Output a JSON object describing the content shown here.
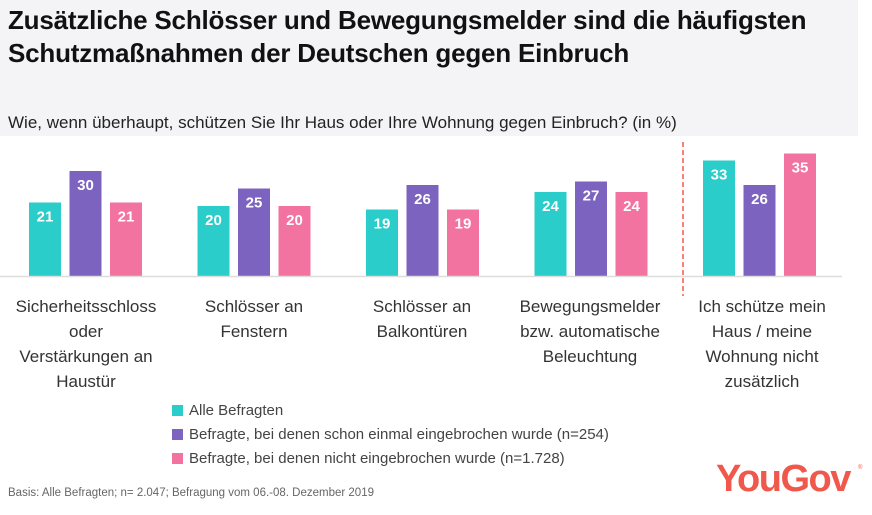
{
  "header": {
    "title": "Zusätzliche Schlösser und Bewegungsmelder sind die häufigsten Schutzmaßnahmen der Deutschen gegen Einbruch",
    "subtitle": "Wie, wenn überhaupt, schützen Sie Ihr Haus oder Ihre Wohnung gegen Einbruch? (in %)"
  },
  "chart_data": {
    "type": "bar",
    "title": "Zusätzliche Schlösser und Bewegungsmelder sind die häufigsten Schutzmaßnahmen der Deutschen gegen Einbruch",
    "subtitle": "Wie, wenn überhaupt, schützen Sie Ihr Haus oder Ihre Wohnung gegen Einbruch? (in %)",
    "xlabel": "",
    "ylabel": "",
    "ylim": [
      0,
      40
    ],
    "grid": false,
    "legend_position": "bottom",
    "categories": [
      "Sicherheitsschloss oder Verstärkungen an Haustür",
      "Schlösser an Fenstern",
      "Schlösser an Balkontüren",
      "Bewegungsmelder bzw. automatische Beleuchtung",
      "Ich schütze mein Haus / meine Wohnung nicht zusätzlich"
    ],
    "category_lines": [
      [
        "Sicherheitsschloss",
        "oder",
        "Verstärkungen an",
        "Haustür"
      ],
      [
        "Schlösser an",
        "Fenstern"
      ],
      [
        "Schlösser an",
        "Balkontüren"
      ],
      [
        "Bewegungsmelder",
        "bzw. automatische",
        "Beleuchtung"
      ],
      [
        "Ich schütze mein",
        "Haus / meine",
        "Wohnung nicht",
        "zusätzlich"
      ]
    ],
    "series": [
      {
        "name": "Alle Befragten",
        "color": "#2acdc9",
        "values": [
          21,
          20,
          19,
          24,
          33
        ]
      },
      {
        "name": "Befragte, bei denen schon einmal eingebrochen wurde (n=254)",
        "color": "#7c63bf",
        "values": [
          30,
          25,
          26,
          27,
          26
        ]
      },
      {
        "name": "Befragte, bei denen nicht eingebrochen wurde (n=1.728)",
        "color": "#f272a0",
        "values": [
          21,
          20,
          19,
          24,
          35
        ]
      }
    ],
    "annotations": [
      {
        "type": "dashed-separator",
        "between": [
          3,
          4
        ],
        "color": "#f0584c"
      }
    ]
  },
  "footer": {
    "note": "Basis: Alle Befragten; n= 2.047; Befragung vom 06.-08. Dezember 2019",
    "logo": "YouGov",
    "logo_mark": "®"
  }
}
